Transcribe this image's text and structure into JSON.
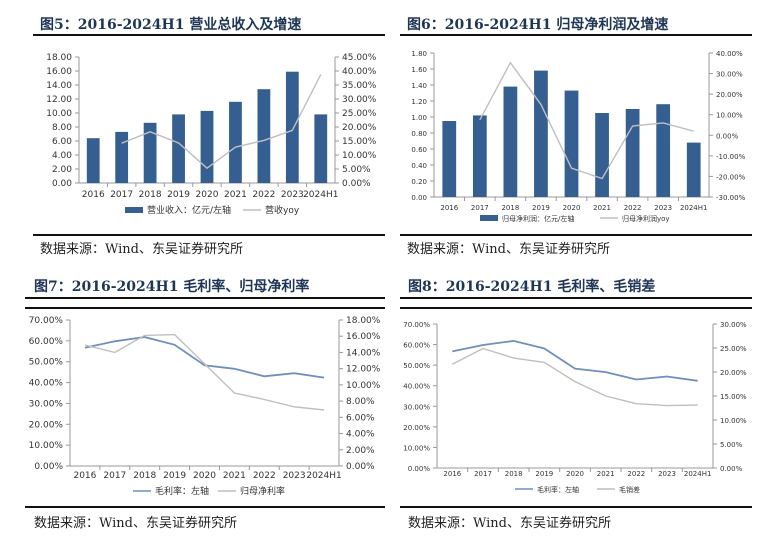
{
  "colors": {
    "bar": "#365f91",
    "line_blue": "#6f8fbf",
    "line_gray": "#bfbfbf",
    "title": "#1f3556"
  },
  "source_text": "数据来源：Wind、东吴证券研究所",
  "chart_data": [
    {
      "type": "bar",
      "title": "图5：2016-2024H1 营业总收入及增速",
      "categories": [
        "2016",
        "2017",
        "2018",
        "2019",
        "2020",
        "2021",
        "2022",
        "2023",
        "2024H1"
      ],
      "series": [
        {
          "name": "营业收入：亿元/左轴",
          "kind": "bar",
          "axis": "left",
          "values": [
            6.4,
            7.3,
            8.6,
            9.8,
            10.3,
            11.6,
            13.4,
            15.9,
            9.8
          ]
        },
        {
          "name": "营收yoy",
          "kind": "line",
          "axis": "right",
          "color": "gray",
          "values": [
            null,
            14.2,
            18.3,
            14.3,
            5.3,
            12.8,
            15.2,
            18.8,
            38.8
          ]
        }
      ],
      "left_axis": {
        "min": 0,
        "max": 18,
        "step": 2,
        "ticks": [
          "0.00",
          "2.00",
          "4.00",
          "6.00",
          "8.00",
          "10.00",
          "12.00",
          "14.00",
          "16.00",
          "18.00"
        ]
      },
      "right_axis": {
        "min": 0,
        "max": 45,
        "step": 5,
        "ticks": [
          "0.00%",
          "5.00%",
          "10.00%",
          "15.00%",
          "20.00%",
          "25.00%",
          "30.00%",
          "35.00%",
          "40.00%",
          "45.00%"
        ]
      },
      "legend": "bottom"
    },
    {
      "type": "bar",
      "title": "图6：2016-2024H1 归母净利润及增速",
      "categories": [
        "2016",
        "2017",
        "2018",
        "2019",
        "2020",
        "2021",
        "2022",
        "2023",
        "2024H1"
      ],
      "series": [
        {
          "name": "归母净利润：亿元/左轴",
          "kind": "bar",
          "axis": "left",
          "values": [
            0.95,
            1.02,
            1.38,
            1.58,
            1.33,
            1.05,
            1.1,
            1.16,
            0.68
          ]
        },
        {
          "name": "归母净利润yoy",
          "kind": "line",
          "axis": "right",
          "color": "gray",
          "values": [
            null,
            7.5,
            35.3,
            15.0,
            -16.0,
            -21.0,
            4.5,
            6.0,
            2.0
          ]
        }
      ],
      "left_axis": {
        "min": 0,
        "max": 1.8,
        "step": 0.2,
        "ticks": [
          "0.00",
          "0.20",
          "0.40",
          "0.60",
          "0.80",
          "1.00",
          "1.20",
          "1.40",
          "1.60",
          "1.80"
        ]
      },
      "right_axis": {
        "min": -30,
        "max": 40,
        "step": 10,
        "ticks": [
          "-30.00%",
          "-20.00%",
          "-10.00%",
          "0.00%",
          "10.00%",
          "20.00%",
          "30.00%",
          "40.00%"
        ]
      },
      "legend": "bottom"
    },
    {
      "type": "line",
      "title": "图7：2016-2024H1 毛利率、归母净利率",
      "categories": [
        "2016",
        "2017",
        "2018",
        "2019",
        "2020",
        "2021",
        "2022",
        "2023",
        "2024H1"
      ],
      "series": [
        {
          "name": "毛利率：左轴",
          "kind": "line",
          "axis": "left",
          "color": "blue",
          "values": [
            56.7,
            59.8,
            61.8,
            58.1,
            48.3,
            46.6,
            43.0,
            44.5,
            42.4
          ]
        },
        {
          "name": "归母净利率",
          "kind": "line",
          "axis": "right",
          "color": "gray",
          "values": [
            14.9,
            14.0,
            16.1,
            16.2,
            12.6,
            9.0,
            8.2,
            7.3,
            6.9
          ]
        }
      ],
      "left_axis": {
        "min": 0,
        "max": 70,
        "step": 10,
        "ticks": [
          "0.00%",
          "10.00%",
          "20.00%",
          "30.00%",
          "40.00%",
          "50.00%",
          "60.00%",
          "70.00%"
        ]
      },
      "right_axis": {
        "min": 0,
        "max": 18,
        "step": 2,
        "ticks": [
          "0.00%",
          "2.00%",
          "4.00%",
          "6.00%",
          "8.00%",
          "10.00%",
          "12.00%",
          "14.00%",
          "16.00%",
          "18.00%"
        ]
      },
      "legend": "bottom"
    },
    {
      "type": "line",
      "title": "图8：2016-2024H1 毛利率、毛销差",
      "categories": [
        "2016",
        "2017",
        "2018",
        "2019",
        "2020",
        "2021",
        "2022",
        "2023",
        "2024H1"
      ],
      "series": [
        {
          "name": "毛利率：左轴",
          "kind": "line",
          "axis": "left",
          "color": "blue",
          "values": [
            56.7,
            59.8,
            61.8,
            58.1,
            48.3,
            46.6,
            43.0,
            44.5,
            42.4
          ]
        },
        {
          "name": "毛销差",
          "kind": "line",
          "axis": "right",
          "color": "gray",
          "values": [
            21.6,
            24.9,
            22.9,
            22.0,
            18.0,
            15.0,
            13.4,
            13.0,
            13.1
          ]
        }
      ],
      "left_axis": {
        "min": 0,
        "max": 70,
        "step": 10,
        "ticks": [
          "0.00%",
          "10.00%",
          "20.00%",
          "30.00%",
          "40.00%",
          "50.00%",
          "60.00%",
          "70.00%"
        ]
      },
      "right_axis": {
        "min": 0,
        "max": 30,
        "step": 5,
        "ticks": [
          "0.00%",
          "5.00%",
          "10.00%",
          "15.00%",
          "20.00%",
          "25.00%",
          "30.00%"
        ]
      },
      "legend": "bottom"
    }
  ]
}
